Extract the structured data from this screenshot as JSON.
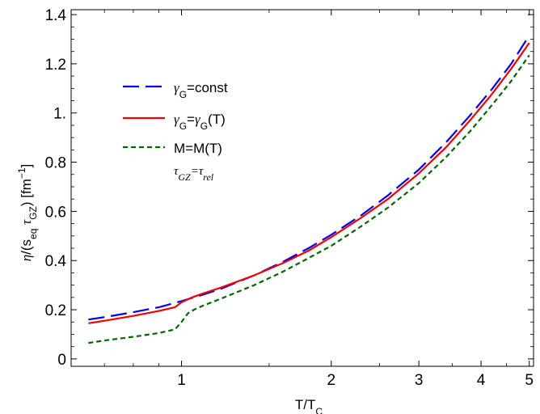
{
  "chart_data": {
    "type": "line",
    "xlabel": "T/T_C",
    "ylabel": "η/(s_eq τ_GZ) [fm⁻¹]",
    "x_scale": "log",
    "xlim": [
      0.6,
      5.1
    ],
    "ylim": [
      -0.03,
      1.42
    ],
    "x_ticks": [
      1,
      2,
      3,
      4,
      5
    ],
    "x_tick_labels": [
      "1",
      "2",
      "3",
      "4",
      "5"
    ],
    "y_ticks": [
      0,
      0.2,
      0.4,
      0.6,
      0.8,
      1.0,
      1.2,
      1.4
    ],
    "y_tick_labels": [
      "0",
      "0.2",
      "0.4",
      "0.6",
      "0.8",
      "1.",
      "1.2",
      "1.4"
    ],
    "grid": false,
    "legend_position": "top-left",
    "legend_note": "τ_GZ=τ_rel",
    "series": [
      {
        "name": "γ_G=const",
        "color": "#0000ee",
        "dash": "long-dash",
        "x": [
          0.65,
          0.7,
          0.8,
          0.9,
          1.0,
          1.1,
          1.2,
          1.4,
          1.6,
          1.8,
          2.0,
          2.3,
          2.6,
          3.0,
          3.4,
          3.8,
          4.2,
          4.6,
          5.0
        ],
        "y": [
          0.16,
          0.17,
          0.19,
          0.21,
          0.235,
          0.26,
          0.285,
          0.34,
          0.395,
          0.45,
          0.505,
          0.585,
          0.665,
          0.77,
          0.88,
          0.99,
          1.095,
          1.2,
          1.315
        ]
      },
      {
        "name": "γ_G=γ_G(T)",
        "color": "#ee0000",
        "dash": "solid",
        "x": [
          0.65,
          0.7,
          0.8,
          0.9,
          0.97,
          1.0,
          1.05,
          1.1,
          1.2,
          1.4,
          1.6,
          1.8,
          2.0,
          2.3,
          2.6,
          3.0,
          3.4,
          3.8,
          4.2,
          4.6,
          5.0
        ],
        "y": [
          0.145,
          0.155,
          0.175,
          0.195,
          0.21,
          0.23,
          0.25,
          0.265,
          0.29,
          0.34,
          0.39,
          0.44,
          0.495,
          0.575,
          0.65,
          0.755,
          0.86,
          0.97,
          1.075,
          1.18,
          1.285
        ]
      },
      {
        "name": "M=M(T)",
        "color": "#006600",
        "dash": "short-dash",
        "x": [
          0.65,
          0.7,
          0.8,
          0.9,
          0.97,
          1.0,
          1.03,
          1.06,
          1.1,
          1.2,
          1.4,
          1.6,
          1.8,
          2.0,
          2.3,
          2.6,
          3.0,
          3.4,
          3.8,
          4.2,
          4.6,
          5.0
        ],
        "y": [
          0.065,
          0.075,
          0.09,
          0.105,
          0.12,
          0.15,
          0.185,
          0.2,
          0.215,
          0.245,
          0.3,
          0.355,
          0.41,
          0.46,
          0.54,
          0.615,
          0.715,
          0.82,
          0.925,
          1.03,
          1.13,
          1.235
        ]
      }
    ]
  }
}
